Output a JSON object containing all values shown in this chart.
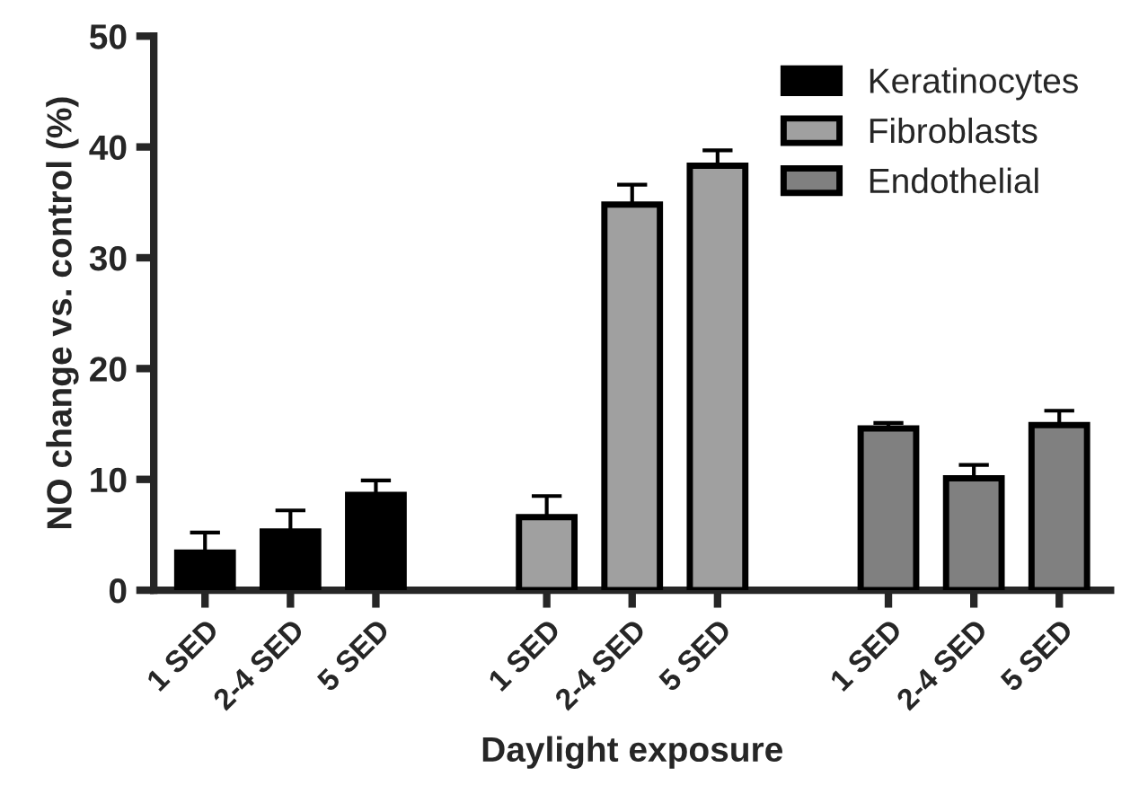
{
  "chart_data": {
    "type": "bar",
    "xlabel": "Daylight exposure",
    "ylabel": "NO change vs. control (%)",
    "categories": [
      "1 SED",
      "2-4 SED",
      "5 SED",
      null,
      "1 SED",
      "2-4 SED",
      "5 SED",
      null,
      "1 SED",
      "2-4 SED",
      "5 SED"
    ],
    "series": [
      {
        "name": "Keratinocytes",
        "color": "#000000",
        "values": [
          3.4,
          5.3,
          8.6,
          null,
          null,
          null,
          null,
          null,
          null,
          null,
          null
        ],
        "errors": [
          [
            3.4,
            5.2
          ],
          [
            5.3,
            7.2
          ],
          [
            8.6,
            9.9
          ],
          null,
          null,
          null,
          null,
          null,
          null,
          null,
          null
        ]
      },
      {
        "name": "Fibroblasts",
        "color": "#a0a0a0",
        "values": [
          null,
          null,
          null,
          null,
          6.6,
          34.8,
          38.3,
          null,
          null,
          null,
          null
        ],
        "errors": [
          null,
          null,
          null,
          null,
          [
            6.6,
            8.5
          ],
          [
            34.8,
            36.6
          ],
          [
            38.3,
            39.7
          ],
          null,
          null,
          null,
          null
        ]
      },
      {
        "name": "Endothelial",
        "color": "#808080",
        "values": [
          null,
          null,
          null,
          null,
          null,
          null,
          null,
          null,
          14.6,
          10.1,
          14.9
        ],
        "errors": [
          null,
          null,
          null,
          null,
          null,
          null,
          null,
          null,
          [
            14.6,
            15.1
          ],
          [
            10.1,
            11.3
          ],
          [
            14.9,
            16.2
          ]
        ]
      }
    ],
    "ylim": [
      0,
      50
    ],
    "yticks": [
      0,
      10,
      20,
      30,
      40,
      50
    ],
    "grid": false,
    "legend": "top right"
  }
}
